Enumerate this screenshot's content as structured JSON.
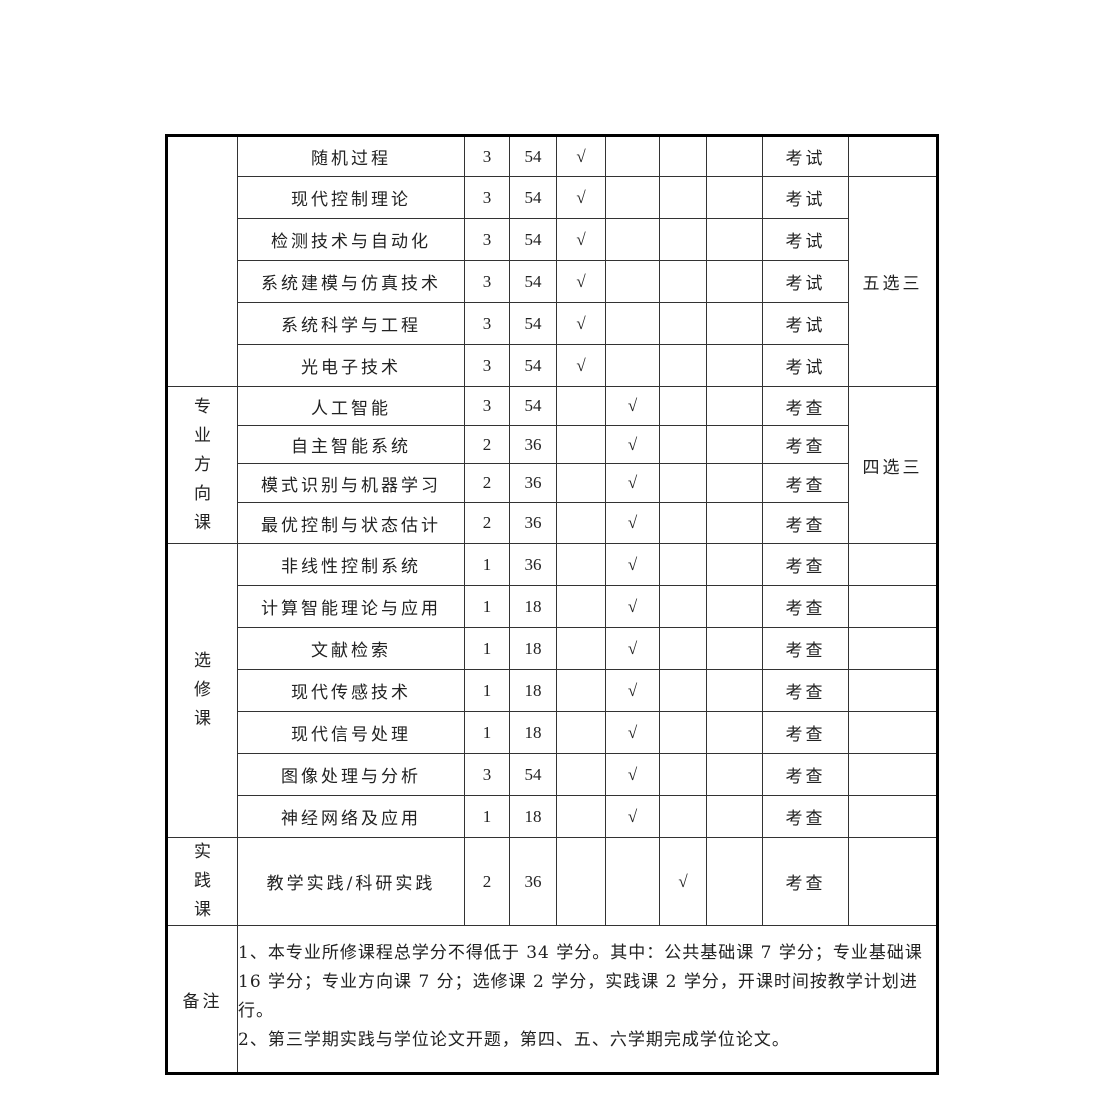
{
  "check_mark": "√",
  "groups": [
    {
      "category": "",
      "rows": 8
    },
    {
      "category": "专\n业\n方\n向\n课"
    },
    {
      "category": "选\n修\n课"
    },
    {
      "category": "实\n践\n课"
    }
  ],
  "courses": [
    {
      "name": "随机过程",
      "credits": "3",
      "hours": "54",
      "check_col": 0,
      "assessment": "考试",
      "group": 0
    },
    {
      "name": "现代控制理论",
      "credits": "3",
      "hours": "54",
      "check_col": 0,
      "assessment": "考试",
      "group": 0
    },
    {
      "name": "检测技术与自动化",
      "credits": "3",
      "hours": "54",
      "check_col": 0,
      "assessment": "考试",
      "group": 0
    },
    {
      "name": "系统建模与仿真技术",
      "credits": "3",
      "hours": "54",
      "check_col": 0,
      "assessment": "考试",
      "group": 0
    },
    {
      "name": "系统科学与工程",
      "credits": "3",
      "hours": "54",
      "check_col": 0,
      "assessment": "考试",
      "group": 0
    },
    {
      "name": "光电子技术",
      "credits": "3",
      "hours": "54",
      "check_col": 0,
      "assessment": "考试",
      "group": 0
    },
    {
      "name": "人工智能",
      "credits": "3",
      "hours": "54",
      "check_col": 1,
      "assessment": "考查",
      "group": 1
    },
    {
      "name": "自主智能系统",
      "credits": "2",
      "hours": "36",
      "check_col": 1,
      "assessment": "考查",
      "group": 1
    },
    {
      "name": "模式识别与机器学习",
      "credits": "2",
      "hours": "36",
      "check_col": 1,
      "assessment": "考查",
      "group": 1
    },
    {
      "name": "最优控制与状态估计",
      "credits": "2",
      "hours": "36",
      "check_col": 1,
      "assessment": "考查",
      "group": 1
    },
    {
      "name": "非线性控制系统",
      "credits": "1",
      "hours": "36",
      "check_col": 1,
      "assessment": "考查",
      "group": 2
    },
    {
      "name": "计算智能理论与应用",
      "credits": "1",
      "hours": "18",
      "check_col": 1,
      "assessment": "考查",
      "group": 2
    },
    {
      "name": "文献检索",
      "credits": "1",
      "hours": "18",
      "check_col": 1,
      "assessment": "考查",
      "group": 2
    },
    {
      "name": "现代传感技术",
      "credits": "1",
      "hours": "18",
      "check_col": 1,
      "assessment": "考查",
      "group": 2
    },
    {
      "name": "现代信号处理",
      "credits": "1",
      "hours": "18",
      "check_col": 1,
      "assessment": "考查",
      "group": 2
    },
    {
      "name": "图像处理与分析",
      "credits": "3",
      "hours": "54",
      "check_col": 1,
      "assessment": "考查",
      "group": 2
    },
    {
      "name": "神经网络及应用",
      "credits": "1",
      "hours": "18",
      "check_col": 1,
      "assessment": "考查",
      "group": 2
    },
    {
      "name": "教学实践/科研实践",
      "credits": "2",
      "hours": "36",
      "check_col": 2,
      "assessment": "考查",
      "group": 3
    }
  ],
  "remarks_groups": [
    {
      "text": "",
      "start": 0,
      "span": 1
    },
    {
      "text": "五选三",
      "start": 1,
      "span": 5
    },
    {
      "text": "四选三",
      "start": 6,
      "span": 4
    }
  ],
  "notes": {
    "label": "备注",
    "line1": "1、本专业所修课程总学分不得低于 34 学分。其中：公共基础课 7 学分；专业基础课 16 学分；专业方向课 7 分；选修课 2 学分，实践课 2 学分，开课时间按教学计划进行。",
    "line2": "2、第三学期实践与学位论文开题，第四、五、六学期完成学位论文。"
  }
}
